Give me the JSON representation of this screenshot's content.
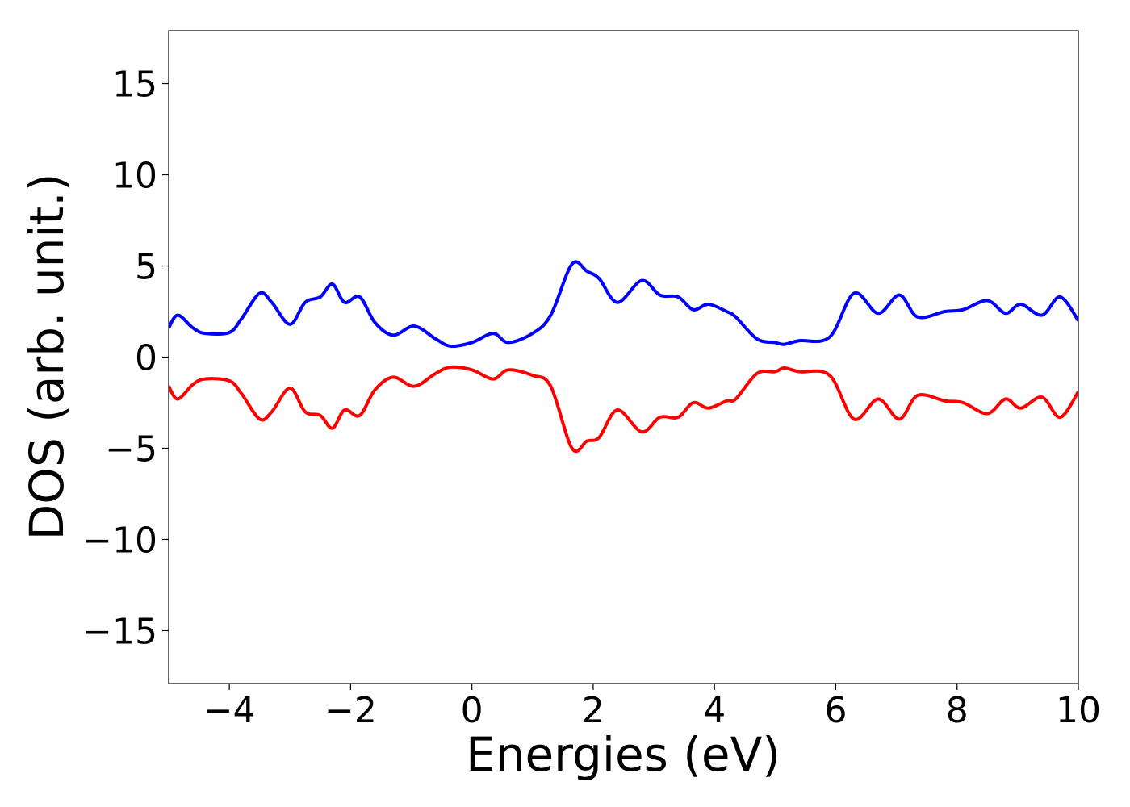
{
  "chart_data": {
    "type": "line",
    "xlabel": "Energies (eV)",
    "ylabel": "DOS (arb. unit.)",
    "x": [
      -5,
      -4.85,
      -4.6,
      -4.4,
      -4.0,
      -3.8,
      -3.5,
      -3.3,
      -3.0,
      -2.75,
      -2.5,
      -2.3,
      -2.1,
      -1.85,
      -1.6,
      -1.3,
      -0.95,
      -0.6,
      -0.35,
      0,
      0.35,
      0.6,
      1.0,
      1.3,
      1.65,
      1.9,
      2.1,
      2.4,
      2.8,
      3.1,
      3.4,
      3.65,
      3.9,
      4.2,
      4.35,
      4.7,
      5.0,
      5.15,
      5.4,
      5.9,
      6.3,
      6.7,
      7.05,
      7.35,
      7.8,
      8.1,
      8.5,
      8.8,
      9.05,
      9.4,
      9.7,
      10
    ],
    "series": [
      {
        "color": "#0000ff",
        "values": [
          1.6,
          2.3,
          1.6,
          1.3,
          1.35,
          2.1,
          3.5,
          3.0,
          1.8,
          3.0,
          3.3,
          4.0,
          3.0,
          3.3,
          1.9,
          1.2,
          1.7,
          1.0,
          0.6,
          0.8,
          1.3,
          0.8,
          1.3,
          2.3,
          5.1,
          4.7,
          4.3,
          3.0,
          4.2,
          3.4,
          3.3,
          2.6,
          2.9,
          2.5,
          2.2,
          1.0,
          0.8,
          0.7,
          0.9,
          1.1,
          3.5,
          2.4,
          3.4,
          2.2,
          2.5,
          2.6,
          3.1,
          2.4,
          2.9,
          2.3,
          3.3,
          2.0
        ]
      },
      {
        "color": "#ff0000",
        "values": [
          -1.6,
          -2.3,
          -1.5,
          -1.2,
          -1.3,
          -2.0,
          -3.4,
          -3.0,
          -1.7,
          -3.0,
          -3.2,
          -3.9,
          -2.9,
          -3.2,
          -1.8,
          -1.1,
          -1.6,
          -0.9,
          -0.55,
          -0.7,
          -1.2,
          -0.7,
          -1.0,
          -1.6,
          -5.0,
          -4.6,
          -4.4,
          -2.9,
          -4.1,
          -3.3,
          -3.3,
          -2.5,
          -2.8,
          -2.4,
          -2.3,
          -0.9,
          -0.8,
          -0.6,
          -0.8,
          -1.0,
          -3.4,
          -2.3,
          -3.4,
          -2.1,
          -2.4,
          -2.5,
          -3.1,
          -2.3,
          -2.8,
          -2.2,
          -3.3,
          -1.9
        ]
      }
    ],
    "xlim": [
      -5,
      10
    ],
    "xticks": [
      {
        "value": -4,
        "label": "−4"
      },
      {
        "value": -2,
        "label": "−2"
      },
      0,
      2,
      4,
      6,
      8,
      10
    ],
    "ylim": [
      -17.9,
      17.9
    ],
    "yticks": [
      {
        "value": -15,
        "label": "−15"
      },
      {
        "value": -10,
        "label": "−10"
      },
      {
        "value": -5,
        "label": "−5"
      },
      0,
      5,
      10,
      15
    ]
  }
}
